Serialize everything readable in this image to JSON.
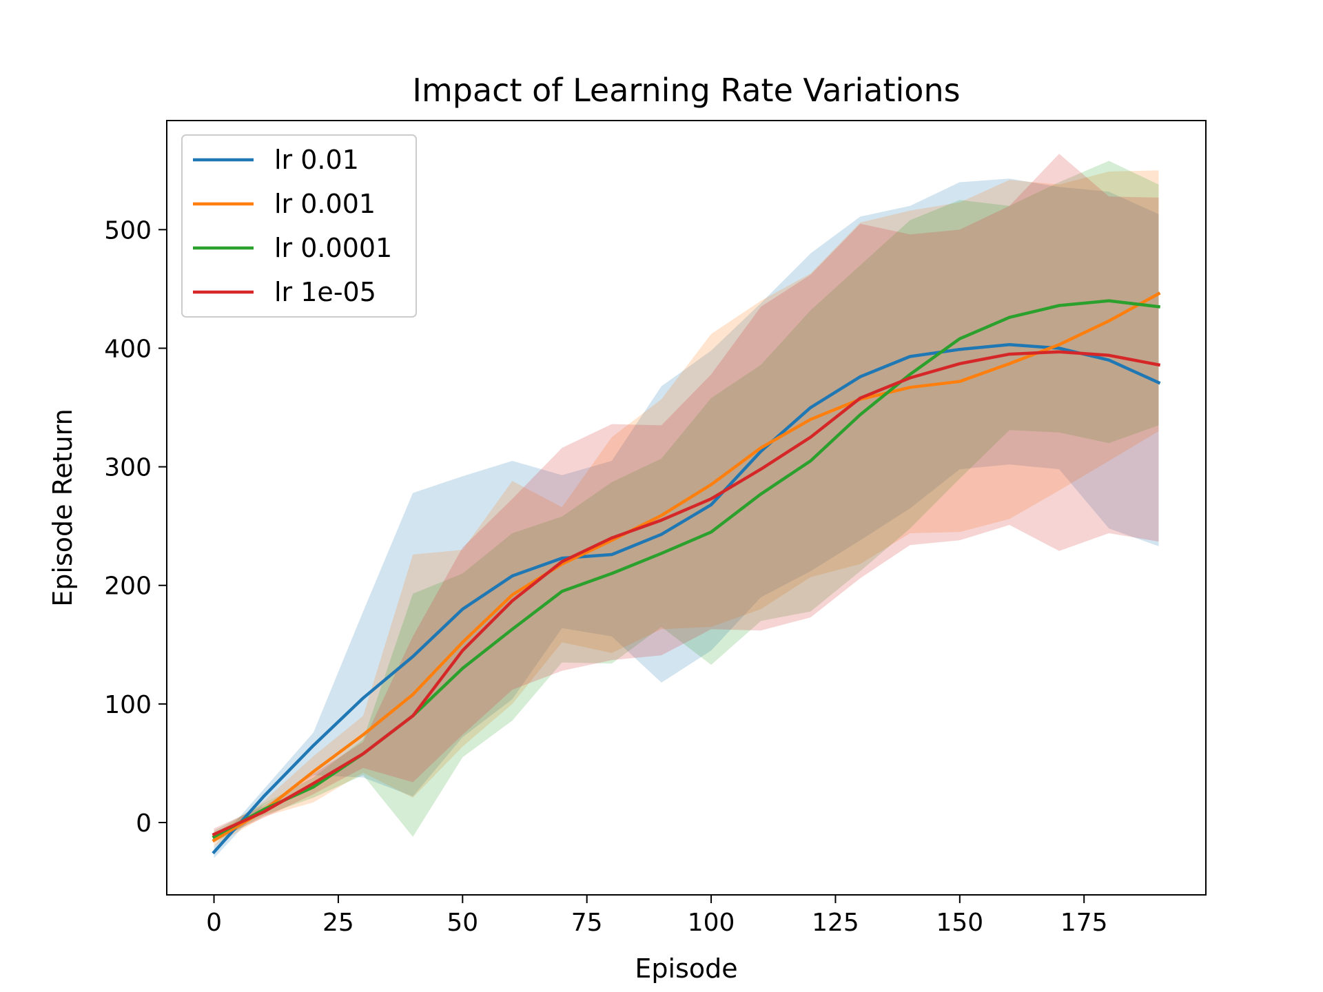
{
  "chart_data": {
    "type": "line",
    "title": "Impact of Learning Rate Variations",
    "xlabel": "Episode",
    "ylabel": "Episode Return",
    "xlim": [
      -9.5,
      199.5
    ],
    "ylim": [
      -61,
      592
    ],
    "xticks": [
      0,
      25,
      50,
      75,
      100,
      125,
      150,
      175
    ],
    "yticks": [
      0,
      100,
      200,
      300,
      400,
      500
    ],
    "grid": false,
    "legend_position": "top-left",
    "x": [
      0,
      10,
      20,
      30,
      40,
      50,
      60,
      70,
      80,
      90,
      100,
      110,
      120,
      130,
      140,
      150,
      160,
      170,
      180,
      190
    ],
    "series": [
      {
        "name": "lr 0.01",
        "color": "#1f77b4",
        "values": [
          -25,
          22,
          65,
          105,
          140,
          180,
          208,
          223,
          226,
          243,
          268,
          313,
          350,
          376,
          393,
          399,
          403,
          400,
          390,
          371
        ],
        "upper": [
          -20,
          28,
          76,
          178,
          278,
          292,
          305,
          293,
          305,
          368,
          398,
          438,
          480,
          511,
          520,
          540,
          543,
          536,
          532,
          513
        ],
        "lower": [
          -30,
          15,
          40,
          38,
          22,
          72,
          104,
          164,
          157,
          118,
          145,
          190,
          212,
          238,
          265,
          298,
          302,
          298,
          248,
          233
        ]
      },
      {
        "name": "lr 0.001",
        "color": "#ff7f0e",
        "values": [
          -15,
          10,
          43,
          74,
          108,
          152,
          192,
          218,
          238,
          259,
          285,
          316,
          340,
          357,
          367,
          372,
          387,
          403,
          423,
          446
        ],
        "upper": [
          -10,
          18,
          56,
          90,
          226,
          230,
          288,
          266,
          325,
          357,
          412,
          440,
          463,
          506,
          516,
          523,
          542,
          538,
          549,
          550
        ],
        "lower": [
          -20,
          5,
          17,
          42,
          21,
          64,
          100,
          152,
          143,
          163,
          165,
          180,
          207,
          218,
          244,
          245,
          256,
          280,
          305,
          330
        ]
      },
      {
        "name": "lr 0.0001",
        "color": "#2ca02c",
        "values": [
          -12,
          11,
          30,
          58,
          90,
          130,
          163,
          195,
          210,
          227,
          245,
          277,
          305,
          344,
          378,
          408,
          426,
          436,
          440,
          435
        ],
        "upper": [
          -7,
          16,
          38,
          70,
          193,
          210,
          244,
          258,
          287,
          307,
          358,
          386,
          432,
          470,
          508,
          525,
          520,
          540,
          558,
          538
        ],
        "lower": [
          -17,
          6,
          21,
          40,
          -12,
          55,
          86,
          135,
          134,
          165,
          133,
          170,
          178,
          212,
          248,
          290,
          331,
          329,
          320,
          335
        ]
      },
      {
        "name": "lr 1e-05",
        "color": "#d62728",
        "values": [
          -10,
          9,
          33,
          58,
          90,
          145,
          187,
          220,
          240,
          255,
          273,
          298,
          325,
          358,
          375,
          387,
          395,
          397,
          394,
          386
        ],
        "upper": [
          -5,
          14,
          41,
          68,
          157,
          232,
          273,
          316,
          336,
          335,
          378,
          435,
          462,
          505,
          496,
          500,
          520,
          564,
          528,
          527
        ],
        "lower": [
          -15,
          4,
          24,
          46,
          34,
          74,
          112,
          128,
          137,
          141,
          163,
          162,
          173,
          206,
          234,
          238,
          251,
          229,
          244,
          237
        ]
      }
    ]
  }
}
